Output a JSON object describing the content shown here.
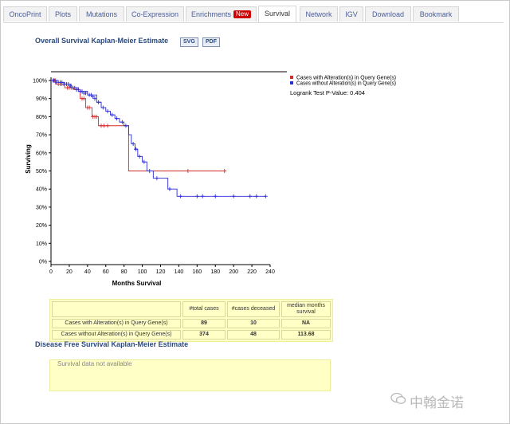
{
  "tabs": [
    {
      "label": "OncoPrint",
      "active": false
    },
    {
      "label": "Plots",
      "active": false
    },
    {
      "label": "Mutations",
      "active": false
    },
    {
      "label": "Co-Expression",
      "active": false
    },
    {
      "label": "Enrichments",
      "active": false,
      "badge": "New"
    },
    {
      "label": "Survival",
      "active": true
    },
    {
      "label": "Network",
      "active": false
    },
    {
      "label": "IGV",
      "active": false
    },
    {
      "label": "Download",
      "active": false
    },
    {
      "label": "Bookmark",
      "active": false
    }
  ],
  "overall": {
    "title": "Overall Survival Kaplan-Meier Estimate",
    "svg_label": "SVG",
    "pdf_label": "PDF"
  },
  "chart_data": {
    "type": "line",
    "xlabel": "Months Survival",
    "ylabel": "Surviving",
    "xlim": [
      0,
      240
    ],
    "ylim": [
      0,
      100
    ],
    "x_ticks": [
      0,
      20,
      40,
      60,
      80,
      100,
      120,
      140,
      160,
      180,
      200,
      220,
      240
    ],
    "y_ticks": [
      0,
      10,
      20,
      30,
      40,
      50,
      60,
      70,
      80,
      90,
      100
    ],
    "y_tick_labels": [
      "0%",
      "10%",
      "20%",
      "30%",
      "40%",
      "50%",
      "60%",
      "70%",
      "80%",
      "90%",
      "100%"
    ],
    "legend_position": "top-right",
    "logrank_text": "Logrank Test P-Value: 0.404",
    "series": [
      {
        "name": "Cases with Alteration(s) in Query Gene(s)",
        "color": "#d62b2b",
        "steps": [
          [
            0,
            100
          ],
          [
            5,
            98
          ],
          [
            15,
            96
          ],
          [
            25,
            95
          ],
          [
            32,
            90
          ],
          [
            38,
            85
          ],
          [
            45,
            80
          ],
          [
            52,
            75
          ],
          [
            83,
            75
          ],
          [
            85,
            50
          ],
          [
            190,
            50
          ]
        ],
        "censored": [
          [
            4,
            100
          ],
          [
            8,
            98
          ],
          [
            10,
            98
          ],
          [
            12,
            98
          ],
          [
            18,
            96
          ],
          [
            20,
            96
          ],
          [
            22,
            96
          ],
          [
            28,
            95
          ],
          [
            30,
            95
          ],
          [
            34,
            90
          ],
          [
            36,
            90
          ],
          [
            40,
            85
          ],
          [
            42,
            85
          ],
          [
            46,
            80
          ],
          [
            48,
            80
          ],
          [
            50,
            80
          ],
          [
            55,
            75
          ],
          [
            58,
            75
          ],
          [
            62,
            75
          ],
          [
            150,
            50
          ],
          [
            190,
            50
          ]
        ]
      },
      {
        "name": "Cases without Alteration(s) in Query Gene(s)",
        "color": "#2b2bd6",
        "steps": [
          [
            0,
            100
          ],
          [
            8,
            99
          ],
          [
            15,
            98
          ],
          [
            22,
            96
          ],
          [
            30,
            94
          ],
          [
            40,
            92
          ],
          [
            50,
            88
          ],
          [
            55,
            85
          ],
          [
            60,
            83
          ],
          [
            65,
            81
          ],
          [
            70,
            79
          ],
          [
            75,
            77
          ],
          [
            80,
            75
          ],
          [
            85,
            70
          ],
          [
            88,
            65
          ],
          [
            92,
            62
          ],
          [
            95,
            58
          ],
          [
            100,
            55
          ],
          [
            105,
            50
          ],
          [
            112,
            46
          ],
          [
            128,
            40
          ],
          [
            138,
            36
          ],
          [
            235,
            36
          ]
        ],
        "censored": [
          [
            2,
            100
          ],
          [
            3,
            100
          ],
          [
            5,
            100
          ],
          [
            6,
            99
          ],
          [
            10,
            99
          ],
          [
            12,
            99
          ],
          [
            14,
            98
          ],
          [
            17,
            98
          ],
          [
            19,
            98
          ],
          [
            21,
            97
          ],
          [
            24,
            96
          ],
          [
            26,
            96
          ],
          [
            28,
            95
          ],
          [
            32,
            94
          ],
          [
            34,
            94
          ],
          [
            36,
            93
          ],
          [
            38,
            93
          ],
          [
            42,
            92
          ],
          [
            44,
            92
          ],
          [
            46,
            91
          ],
          [
            48,
            90
          ],
          [
            52,
            88
          ],
          [
            57,
            85
          ],
          [
            62,
            83
          ],
          [
            67,
            81
          ],
          [
            72,
            79
          ],
          [
            78,
            77
          ],
          [
            82,
            75
          ],
          [
            90,
            65
          ],
          [
            93,
            62
          ],
          [
            97,
            58
          ],
          [
            102,
            55
          ],
          [
            108,
            50
          ],
          [
            116,
            46
          ],
          [
            130,
            40
          ],
          [
            142,
            36
          ],
          [
            160,
            36
          ],
          [
            166,
            36
          ],
          [
            180,
            36
          ],
          [
            200,
            36
          ],
          [
            218,
            36
          ],
          [
            225,
            36
          ],
          [
            235,
            36
          ]
        ]
      }
    ]
  },
  "stats_table": {
    "headers": [
      "",
      "#total cases",
      "#cases deceased",
      "median months survival"
    ],
    "rows": [
      [
        "Cases with Alteration(s) in Query Gene(s)",
        "89",
        "10",
        "NA"
      ],
      [
        "Cases without Alteration(s) in Query Gene(s)",
        "374",
        "48",
        "113.68"
      ]
    ]
  },
  "disease_free": {
    "title": "Disease Free Survival Kaplan-Meier Estimate",
    "message": "Survival data not available"
  },
  "watermark": "中翰金诺"
}
